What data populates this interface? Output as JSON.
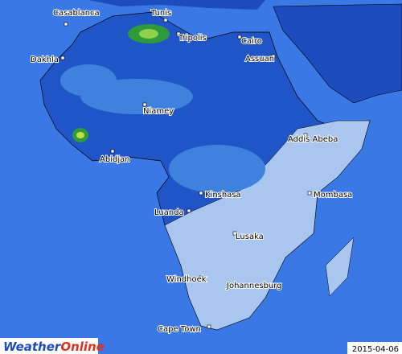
{
  "cities": [
    "Casablanca",
    "Tunis",
    "Tripolis",
    "Cairo",
    "Assuan",
    "Dakhla",
    "Niamey",
    "Addis Abeba",
    "Abidjan",
    "Kinshasa",
    "Mombasa",
    "Luanda",
    "Lusaka",
    "Windhoek",
    "Johannesburg",
    "Cape Town"
  ],
  "logo": {
    "first": "Weather",
    "second": "Online"
  },
  "date": "2015-04-06"
}
